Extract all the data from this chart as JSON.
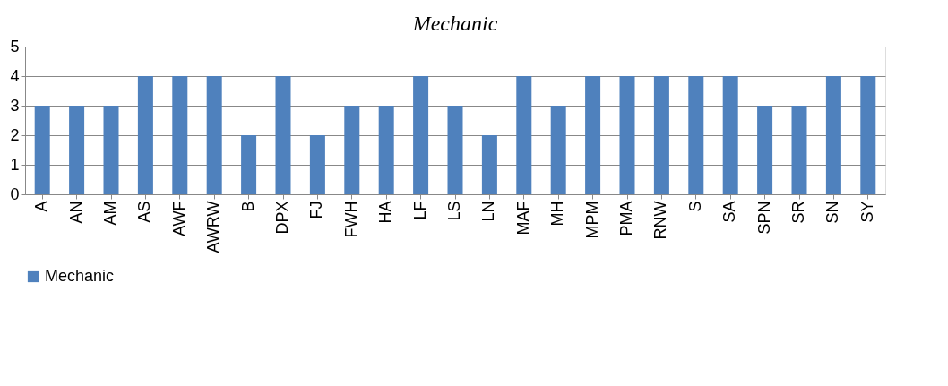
{
  "chart_data": {
    "type": "bar",
    "title": "Mechanic",
    "categories": [
      "A",
      "AN",
      "AM",
      "AS",
      "AWF",
      "AWRW",
      "B",
      "DPX",
      "FJ",
      "FWH",
      "HA",
      "LF",
      "LS",
      "LN",
      "MAF",
      "MH",
      "MPM",
      "PMA",
      "RNW",
      "S",
      "SA",
      "SPN",
      "SR",
      "SN",
      "SY"
    ],
    "series": [
      {
        "name": "Mechanic",
        "color": "#4f81bd",
        "values": [
          3,
          3,
          3,
          4,
          4,
          4,
          2,
          4,
          2,
          3,
          3,
          4,
          3,
          2,
          4,
          3,
          4,
          4,
          4,
          4,
          4,
          3,
          3,
          4,
          4
        ]
      }
    ],
    "ylim": [
      0,
      5
    ],
    "yticks": [
      0,
      1,
      2,
      3,
      4,
      5
    ],
    "grid": "y",
    "legend": "bottom"
  }
}
